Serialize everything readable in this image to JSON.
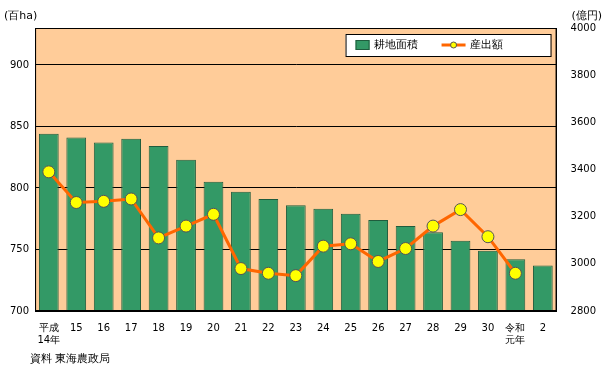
{
  "chart_data": {
    "type": "bar",
    "categories": [
      "平成\n14年",
      "15",
      "16",
      "17",
      "18",
      "19",
      "20",
      "21",
      "22",
      "23",
      "24",
      "25",
      "26",
      "27",
      "28",
      "29",
      "30",
      "令和\n元年",
      "2"
    ],
    "series": [
      {
        "name": "耕地面積",
        "type": "bar",
        "color": "#339966",
        "values": [
          844,
          841,
          837,
          840,
          834,
          823,
          805,
          797,
          791,
          786,
          783,
          779,
          774,
          769,
          764,
          757,
          749,
          742,
          737
        ]
      },
      {
        "name": "産出額",
        "type": "line",
        "color": "#ff6600",
        "marker": "circle",
        "axis": "y2",
        "values": [
          3390,
          3260,
          3265,
          3275,
          3110,
          3160,
          3210,
          2980,
          2960,
          2950,
          3075,
          3085,
          3010,
          3065,
          3160,
          3230,
          3115,
          2960,
          null
        ]
      }
    ],
    "y_label": "(百ha)",
    "y2_label": "(億円)",
    "ylim": [
      700,
      930
    ],
    "yticks": [
      700,
      750,
      800,
      850,
      900
    ],
    "y2lim": [
      2800,
      4000
    ],
    "y2ticks": [
      2800,
      3000,
      3200,
      3400,
      3600,
      3800,
      4000
    ],
    "grid": true,
    "legend": "upper right",
    "source": "資料 東海農政局"
  }
}
